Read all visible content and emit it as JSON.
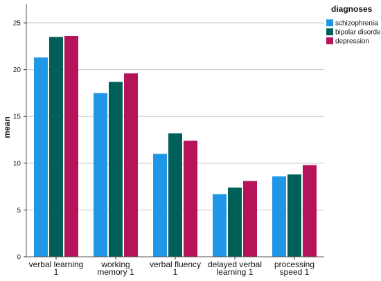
{
  "chart_data": {
    "type": "bar",
    "title": "",
    "xlabel": "",
    "ylabel": "mean",
    "ylim": [
      0,
      27
    ],
    "yticks": [
      0,
      5,
      10,
      15,
      20,
      25
    ],
    "grid": "horizontal",
    "legend_position": "top-right",
    "legend_title": "diagnoses",
    "categories": [
      [
        "verbal learning",
        "1"
      ],
      [
        "working",
        "memory 1"
      ],
      [
        "verbal fluency",
        "1"
      ],
      [
        "delayed verbal",
        "learning 1"
      ],
      [
        "processing",
        "speed 1"
      ]
    ],
    "series": [
      {
        "name": "schizophrenia",
        "color": "#1f97e6",
        "values": [
          21.3,
          17.5,
          11.0,
          6.7,
          8.6
        ]
      },
      {
        "name": "bipolar disorder",
        "color": "#006059",
        "values": [
          23.5,
          18.7,
          13.2,
          7.4,
          8.8
        ]
      },
      {
        "name": "depression",
        "color": "#b5135a",
        "values": [
          23.6,
          19.6,
          12.4,
          8.1,
          9.8
        ]
      }
    ]
  }
}
